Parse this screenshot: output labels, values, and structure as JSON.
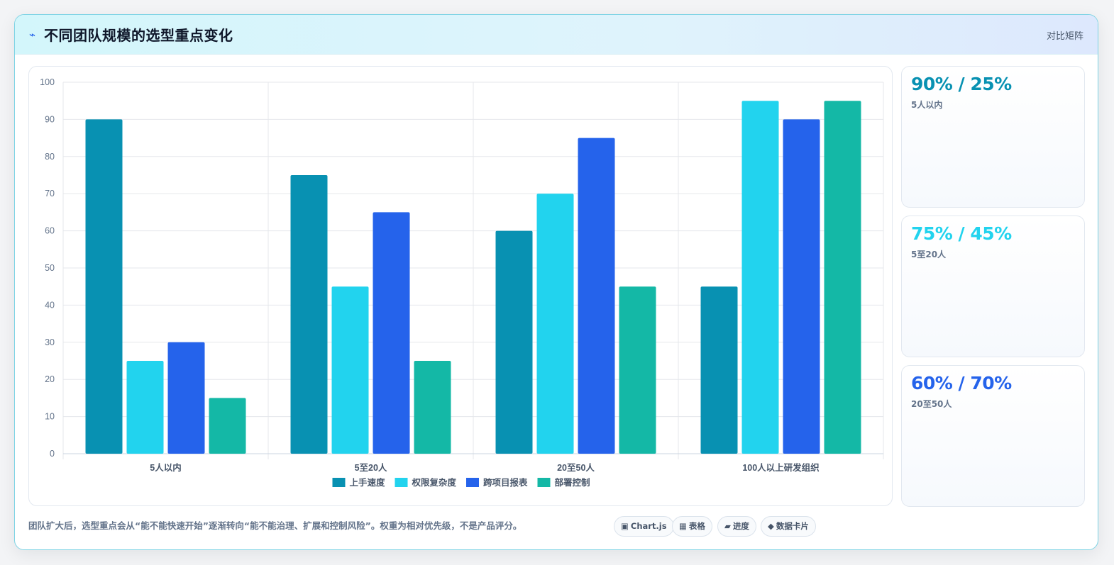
{
  "header": {
    "title": "不同团队规模的选型重点变化",
    "tag": "对比矩阵"
  },
  "chart_data": {
    "type": "bar",
    "categories": [
      "5人以内",
      "5至20人",
      "20至50人",
      "100人以上研发组织"
    ],
    "series": [
      {
        "name": "上手速度",
        "color": "#0891b2",
        "values": [
          90,
          75,
          60,
          45
        ]
      },
      {
        "name": "权限复杂度",
        "color": "#22d3ee",
        "values": [
          25,
          45,
          70,
          95
        ]
      },
      {
        "name": "跨项目报表",
        "color": "#2563eb",
        "values": [
          30,
          65,
          85,
          90
        ]
      },
      {
        "name": "部署控制",
        "color": "#14b8a6",
        "values": [
          15,
          25,
          45,
          95
        ]
      }
    ],
    "ylim": [
      0,
      100
    ],
    "yticks": [
      0,
      10,
      20,
      30,
      40,
      50,
      60,
      70,
      80,
      90,
      100
    ],
    "grid": true,
    "legend": "bottom"
  },
  "stats": [
    {
      "value": "90% / 25%",
      "label": "5人以内",
      "color": "#0891b2"
    },
    {
      "value": "75% / 45%",
      "label": "5至20人",
      "color": "#22d3ee"
    },
    {
      "value": "60% / 70%",
      "label": "20至50人",
      "color": "#2563eb"
    }
  ],
  "footnote": "团队扩大后，选型重点会从“能不能快速开始”逐渐转向“能不能治理、扩展和控制风险”。权重为相对优先级，不是产品评分。",
  "chips": [
    {
      "glyph": "▣",
      "label": "Chart.js"
    },
    {
      "glyph": "▦",
      "label": "表格"
    },
    {
      "glyph": "▰",
      "label": "进度"
    },
    {
      "glyph": "◆",
      "label": "数据卡片"
    }
  ]
}
